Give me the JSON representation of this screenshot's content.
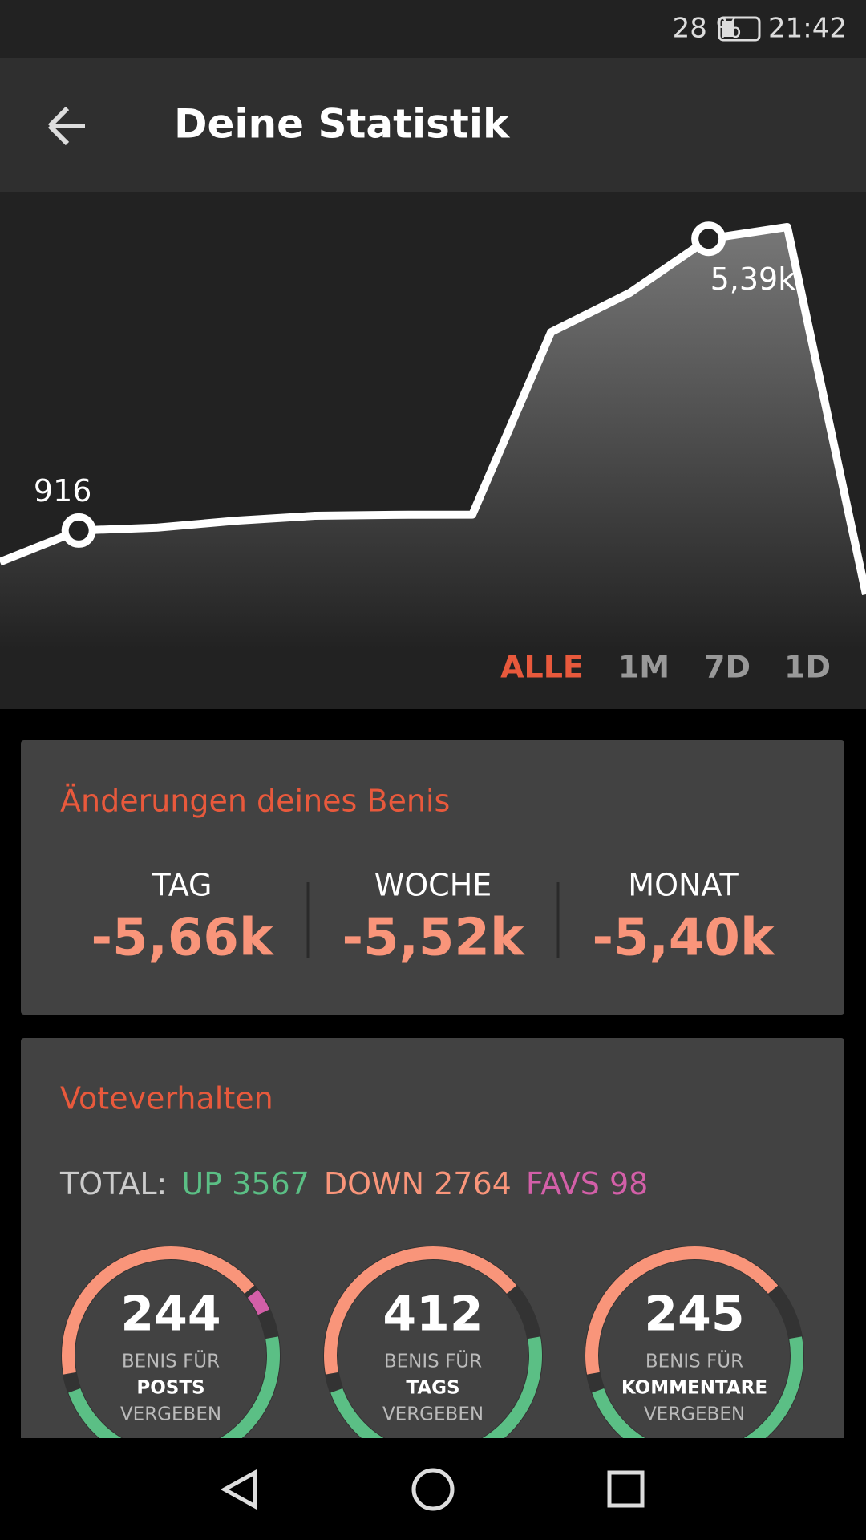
{
  "status_bar": {
    "battery": "28 %",
    "time": "21:42"
  },
  "app_bar": {
    "title": "Deine Statistik"
  },
  "graph": {
    "values": [
      434,
      916,
      961,
      1067,
      1142,
      1157,
      1160,
      3959,
      4562,
      5390,
      5571,
      -63
    ],
    "value_labels": [
      null,
      "916",
      null,
      null,
      null,
      null,
      null,
      null,
      null,
      "5,39k",
      null,
      null
    ],
    "tabs": [
      "ALLE",
      "1M",
      "7D",
      "1D"
    ]
  },
  "changes": {
    "title": "Änderungen deines Benis",
    "columns": [
      {
        "label": "TAG",
        "value": "-5,66k"
      },
      {
        "label": "WOCHE",
        "value": "-5,52k"
      },
      {
        "label": "MONAT",
        "value": "-5,40k"
      }
    ]
  },
  "votes": {
    "title": "Voteverhalten",
    "total_label": "TOTAL:",
    "up": "UP 3567",
    "down": "DOWN 2764",
    "favs": "FAVS 98",
    "rings": [
      {
        "value": "244",
        "line1": "BENIS FÜR",
        "line2": "POSTS",
        "line3": "VERGEBEN"
      },
      {
        "value": "412",
        "line1": "BENIS FÜR",
        "line2": "TAGS",
        "line3": "VERGEBEN"
      },
      {
        "value": "245",
        "line1": "BENIS FÜR",
        "line2": "KOMMENTARE",
        "line3": "VERGEBEN"
      }
    ]
  }
}
